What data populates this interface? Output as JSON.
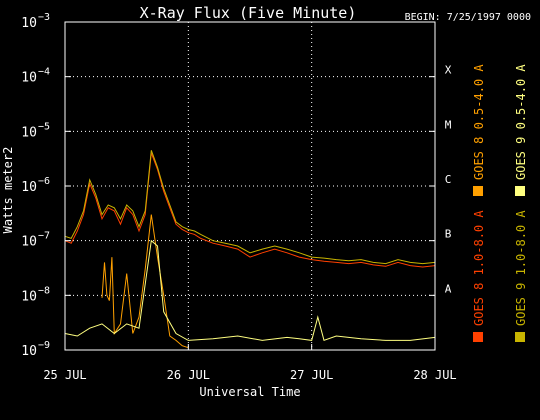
{
  "chart_data": {
    "type": "line",
    "title": "X-Ray Flux (Five Minute)",
    "begin_label": "BEGIN: 7/25/1997 0000",
    "xlabel": "Universal Time",
    "ylabel": "Watts meter2",
    "y_scale": "log",
    "ylim": [
      1e-09,
      0.001
    ],
    "xlim": [
      0,
      3
    ],
    "x_unit": "days since 25 JUL 1997 00:00 UT",
    "x_ticks": [
      {
        "x": 0,
        "label": "25 JUL"
      },
      {
        "x": 1,
        "label": "26 JUL"
      },
      {
        "x": 2,
        "label": "27 JUL"
      },
      {
        "x": 3,
        "label": "28 JUL"
      }
    ],
    "y_tick_exponents": [
      -9,
      -8,
      -7,
      -6,
      -5,
      -4,
      -3
    ],
    "y_tick_base": "10",
    "flare_classes": [
      {
        "label": "A",
        "value": 1e-08
      },
      {
        "label": "B",
        "value": 1e-07
      },
      {
        "label": "C",
        "value": 1e-06
      },
      {
        "label": "M",
        "value": 1e-05
      },
      {
        "label": "X",
        "value": 0.0001
      }
    ],
    "grid": "dotted",
    "legend_position": "right (vertical)",
    "series": [
      {
        "name": "GOES 8 1.0-8.0 A",
        "color": "#ff4000",
        "x": [
          0,
          0.05,
          0.1,
          0.15,
          0.2,
          0.25,
          0.3,
          0.35,
          0.4,
          0.45,
          0.5,
          0.55,
          0.6,
          0.65,
          0.7,
          0.75,
          0.8,
          0.85,
          0.9,
          0.95,
          1.0,
          1.05,
          1.1,
          1.2,
          1.3,
          1.4,
          1.5,
          1.6,
          1.7,
          1.8,
          1.9,
          2.0,
          2.1,
          2.2,
          2.3,
          2.4,
          2.5,
          2.6,
          2.7,
          2.8,
          2.9,
          3.0
        ],
        "y": [
          1e-07,
          9e-08,
          1.5e-07,
          3e-07,
          1.1e-06,
          6e-07,
          2.5e-07,
          4e-07,
          3.5e-07,
          2e-07,
          4e-07,
          3e-07,
          1.5e-07,
          3e-07,
          4e-06,
          2e-06,
          8e-07,
          4e-07,
          2e-07,
          1.6e-07,
          1.4e-07,
          1.3e-07,
          1.1e-07,
          9e-08,
          8e-08,
          7e-08,
          5e-08,
          6e-08,
          7e-08,
          6e-08,
          5e-08,
          4.5e-08,
          4.2e-08,
          4e-08,
          3.8e-08,
          4e-08,
          3.6e-08,
          3.4e-08,
          4e-08,
          3.5e-08,
          3.3e-08,
          3.5e-08
        ]
      },
      {
        "name": "GOES 8 0.5-4.0 A",
        "color": "#ffa000",
        "x": [
          0.3,
          0.32,
          0.34,
          0.36,
          0.38,
          0.4,
          0.45,
          0.5,
          0.55,
          0.6,
          0.65,
          0.7,
          0.75,
          0.8,
          0.85,
          0.9,
          0.95,
          1.0
        ],
        "y": [
          9e-09,
          4e-08,
          1e-08,
          8e-09,
          5e-08,
          2e-09,
          3e-09,
          2.5e-08,
          2e-09,
          4e-09,
          3e-08,
          3e-07,
          5e-08,
          1e-08,
          1.8e-09,
          1.5e-09,
          1.2e-09,
          1.1e-09
        ]
      },
      {
        "name": "GOES 9 1.0-8.0 A",
        "color": "#c8b400",
        "x": [
          0,
          0.05,
          0.1,
          0.15,
          0.2,
          0.25,
          0.3,
          0.35,
          0.4,
          0.45,
          0.5,
          0.55,
          0.6,
          0.65,
          0.7,
          0.75,
          0.8,
          0.85,
          0.9,
          0.95,
          1.0,
          1.05,
          1.1,
          1.2,
          1.3,
          1.4,
          1.5,
          1.6,
          1.7,
          1.8,
          1.9,
          2.0,
          2.1,
          2.2,
          2.3,
          2.4,
          2.5,
          2.6,
          2.7,
          2.8,
          2.9,
          3.0
        ],
        "y": [
          1.2e-07,
          1.1e-07,
          1.8e-07,
          3.5e-07,
          1.3e-06,
          7e-07,
          3e-07,
          4.5e-07,
          4e-07,
          2.5e-07,
          4.5e-07,
          3.5e-07,
          1.8e-07,
          3.5e-07,
          4.5e-06,
          2.2e-06,
          9e-07,
          4.5e-07,
          2.2e-07,
          1.8e-07,
          1.6e-07,
          1.5e-07,
          1.3e-07,
          1e-07,
          9e-08,
          8e-08,
          6e-08,
          7e-08,
          8e-08,
          7e-08,
          6e-08,
          5e-08,
          4.8e-08,
          4.5e-08,
          4.3e-08,
          4.5e-08,
          4e-08,
          3.8e-08,
          4.5e-08,
          4e-08,
          3.8e-08,
          4e-08
        ]
      },
      {
        "name": "GOES 9 0.5-4.0 A",
        "color": "#ffff80",
        "x": [
          0,
          0.1,
          0.2,
          0.3,
          0.4,
          0.5,
          0.6,
          0.7,
          0.75,
          0.8,
          0.9,
          1.0,
          1.2,
          1.4,
          1.6,
          1.8,
          1.9,
          2.0,
          2.05,
          2.1,
          2.2,
          2.4,
          2.6,
          2.8,
          3.0
        ],
        "y": [
          2e-09,
          1.8e-09,
          2.5e-09,
          3e-09,
          2e-09,
          3e-09,
          2.5e-09,
          1e-07,
          8e-08,
          5e-09,
          2e-09,
          1.5e-09,
          1.6e-09,
          1.8e-09,
          1.5e-09,
          1.7e-09,
          1.6e-09,
          1.5e-09,
          4e-09,
          1.5e-09,
          1.8e-09,
          1.6e-09,
          1.5e-09,
          1.5e-09,
          1.7e-09
        ]
      }
    ]
  }
}
